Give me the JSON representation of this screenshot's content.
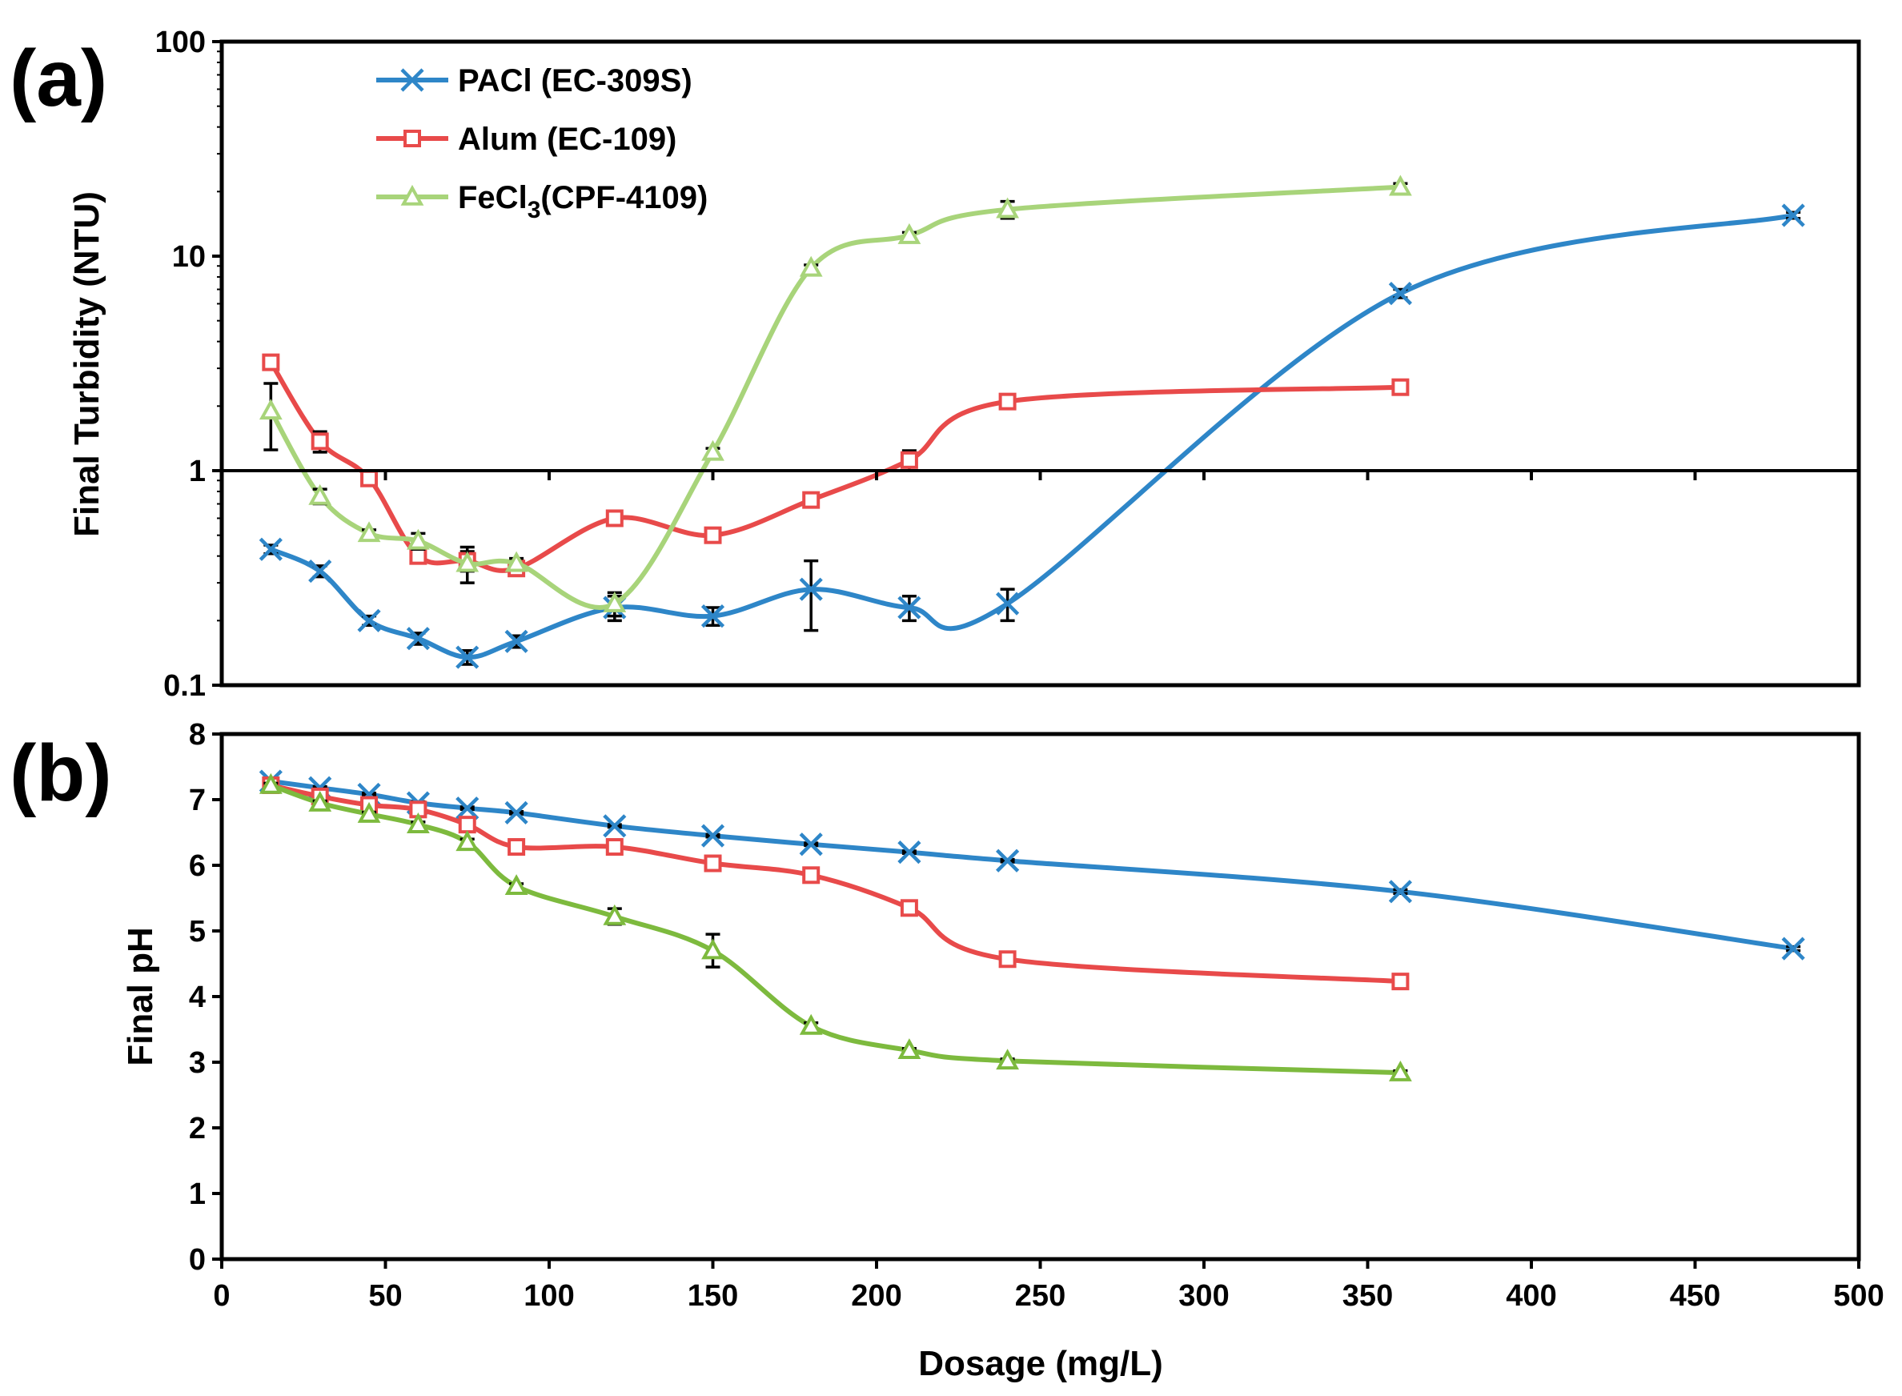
{
  "colors": {
    "pacl": "#2E86C8",
    "alum": "#E84A4A",
    "fecl3_a": "#A8D47A",
    "fecl3_b": "#7DBA3E"
  },
  "legend": {
    "pacl": "PACl (EC-309S)",
    "alum": "Alum (EC-109)",
    "fecl3_main": "FeCl",
    "fecl3_sub": "3",
    "fecl3_rest": "(CPF-4109)"
  },
  "chart_data": [
    {
      "type": "line",
      "panel_label": "(a)",
      "title": "",
      "xlabel": "",
      "ylabel": "Final Turbidity (NTU)",
      "yscale": "log",
      "xlim": [
        0,
        500
      ],
      "ylim": [
        0.1,
        100
      ],
      "xticks": [
        0,
        50,
        100,
        150,
        200,
        250,
        300,
        350,
        400,
        450,
        500
      ],
      "yticks": [
        0.1,
        1,
        10,
        100
      ],
      "ytick_labels": [
        "0.1",
        "1",
        "10",
        "100"
      ],
      "reference_line": 1,
      "series": [
        {
          "name": "PACl (EC-309S)",
          "key": "pacl",
          "marker": "x",
          "x": [
            15,
            30,
            45,
            60,
            75,
            90,
            120,
            150,
            180,
            210,
            240,
            360,
            480
          ],
          "y": [
            0.43,
            0.34,
            0.2,
            0.165,
            0.135,
            0.16,
            0.23,
            0.21,
            0.28,
            0.23,
            0.24,
            6.7,
            15.5
          ],
          "err": [
            0.02,
            0.02,
            0.01,
            0.01,
            0.01,
            0.01,
            0.03,
            0.02,
            0.1,
            0.03,
            0.04,
            0.3,
            0.5
          ]
        },
        {
          "name": "Alum (EC-109)",
          "key": "alum",
          "marker": "square",
          "x": [
            15,
            30,
            45,
            60,
            75,
            90,
            120,
            150,
            180,
            210,
            240,
            360
          ],
          "y": [
            3.2,
            1.37,
            0.92,
            0.4,
            0.38,
            0.35,
            0.6,
            0.5,
            0.73,
            1.12,
            2.1,
            2.45
          ],
          "err": [
            0.1,
            0.15,
            0.05,
            0.03,
            0.04,
            0.02,
            0.03,
            0.02,
            0.04,
            0.12,
            0.1,
            0.1
          ]
        },
        {
          "name": "FeCl3(CPF-4109)",
          "key": "fecl3_a",
          "marker": "triangle",
          "x": [
            15,
            30,
            45,
            60,
            75,
            90,
            120,
            150,
            180,
            210,
            240,
            360
          ],
          "y": [
            1.9,
            0.76,
            0.51,
            0.47,
            0.37,
            0.37,
            0.24,
            1.22,
            8.8,
            12.5,
            16.5,
            21
          ],
          "err": [
            0.65,
            0.06,
            0.02,
            0.04,
            0.07,
            0.02,
            0.03,
            0.05,
            0.3,
            0.4,
            1.5,
            0.8
          ]
        }
      ]
    },
    {
      "type": "line",
      "panel_label": "(b)",
      "title": "",
      "xlabel": "Dosage (mg/L)",
      "ylabel": "Final pH",
      "yscale": "linear",
      "xlim": [
        0,
        500
      ],
      "ylim": [
        0,
        8
      ],
      "xticks": [
        0,
        50,
        100,
        150,
        200,
        250,
        300,
        350,
        400,
        450,
        500
      ],
      "yticks": [
        0,
        1,
        2,
        3,
        4,
        5,
        6,
        7,
        8
      ],
      "ytick_labels": [
        "0",
        "1",
        "2",
        "3",
        "4",
        "5",
        "6",
        "7",
        "8"
      ],
      "series": [
        {
          "name": "PACl (EC-309S)",
          "key": "pacl",
          "marker": "x",
          "x": [
            15,
            30,
            45,
            60,
            75,
            90,
            120,
            150,
            180,
            210,
            240,
            360,
            480
          ],
          "y": [
            7.28,
            7.18,
            7.08,
            6.95,
            6.87,
            6.8,
            6.6,
            6.45,
            6.32,
            6.2,
            6.07,
            5.6,
            4.73
          ],
          "err": [
            0.02,
            0.02,
            0.02,
            0.02,
            0.02,
            0.02,
            0.02,
            0.02,
            0.02,
            0.02,
            0.02,
            0.03,
            0.03
          ]
        },
        {
          "name": "Alum (EC-109)",
          "key": "alum",
          "marker": "square",
          "x": [
            15,
            30,
            45,
            60,
            75,
            90,
            120,
            150,
            180,
            210,
            240,
            360
          ],
          "y": [
            7.22,
            7.05,
            6.92,
            6.85,
            6.62,
            6.28,
            6.28,
            6.03,
            5.85,
            5.35,
            4.57,
            4.23
          ],
          "err": [
            0.03,
            0.03,
            0.03,
            0.03,
            0.04,
            0.03,
            0.03,
            0.03,
            0.04,
            0.04,
            0.04,
            0.05
          ]
        },
        {
          "name": "FeCl3(CPF-4109)",
          "key": "fecl3_b",
          "marker": "triangle",
          "x": [
            15,
            30,
            45,
            60,
            75,
            90,
            120,
            150,
            180,
            210,
            240,
            360
          ],
          "y": [
            7.22,
            6.95,
            6.78,
            6.62,
            6.35,
            5.68,
            5.22,
            4.7,
            3.55,
            3.18,
            3.02,
            2.84
          ],
          "err": [
            0.03,
            0.03,
            0.03,
            0.04,
            0.05,
            0.04,
            0.12,
            0.25,
            0.05,
            0.03,
            0.03,
            0.03
          ]
        }
      ]
    }
  ]
}
